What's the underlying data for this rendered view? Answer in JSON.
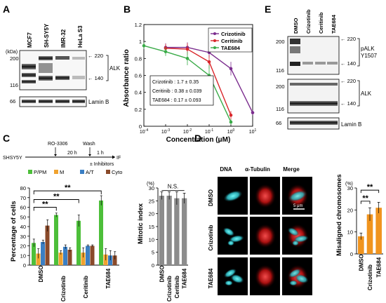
{
  "panels": {
    "A": {
      "letter": "A",
      "lanes": [
        "MCF7",
        "SH-SY5Y",
        "IMR-32",
        "HeLa S3"
      ],
      "kda_label": "(kDa)",
      "markers_left": [
        "200",
        "116",
        "66"
      ],
      "markers_right": [
        "220",
        "140"
      ],
      "blot_labels": [
        "ALK",
        "Lamin B"
      ]
    },
    "B": {
      "letter": "B",
      "legend_box": [
        "Crizotinib : 1.7  ± 0.35",
        "Ceritinib : 0.38 ± 0.039",
        "TAE684 : 0.17 ± 0.093"
      ]
    },
    "C": {
      "letter": "C",
      "schematic": {
        "cell_line": "SHSY5Y",
        "drug": "RO-3306",
        "wash": "Wash",
        "time1": "20 h",
        "time2": "1 h",
        "inhibitors": "± Inhibitors",
        "endpoint": "IF"
      },
      "significance": [
        "**",
        "**",
        "**"
      ],
      "ns_label": "N.S."
    },
    "D": {
      "letter": "D",
      "columns": [
        "DNA",
        "α-Tubulin",
        "Merge"
      ],
      "rows": [
        "DMSO",
        "Crizotinib",
        "TAE684"
      ],
      "scale_bar": "5 μm",
      "significance": [
        "**",
        "**"
      ]
    },
    "E": {
      "letter": "E",
      "lanes": [
        "DMSO",
        "Crizotinib",
        "Ceritinib",
        "TAE684"
      ],
      "markers_left": [
        "200",
        "116",
        "200",
        "116",
        "66"
      ],
      "markers_right": [
        "220",
        "140",
        "220",
        "140"
      ],
      "blot_labels": [
        "pALK",
        "Y1507",
        "ALK",
        "Lamin B"
      ]
    }
  },
  "chart_data": [
    {
      "id": "B",
      "type": "line",
      "xlabel": "Concentration (μM)",
      "ylabel": "Absorbance ratio",
      "x_scale": "log",
      "xlim": [
        0.0001,
        10
      ],
      "ylim": [
        0,
        1.2
      ],
      "x_ticks": [
        "10-4",
        "10-3",
        "10-2",
        "10-1",
        "100",
        "101"
      ],
      "y_ticks": [
        "0",
        "0.2",
        "0.4",
        "0.6",
        "0.8",
        "1",
        "1.2"
      ],
      "x": [
        0.0001,
        0.001,
        0.01,
        0.1,
        1,
        10
      ],
      "legend_position": "top-right",
      "series": [
        {
          "name": "Crizotinib",
          "color": "#7b2d8e",
          "values": [
            null,
            0.93,
            0.93,
            0.87,
            0.68,
            0.16
          ]
        },
        {
          "name": "Ceritinib",
          "color": "#d9262b",
          "values": [
            null,
            0.92,
            0.91,
            0.76,
            0.13,
            null
          ]
        },
        {
          "name": "TAE684",
          "color": "#3aab48",
          "values": [
            0.95,
            0.88,
            0.8,
            0.6,
            0.05,
            null
          ]
        }
      ],
      "errors": {
        "Crizotinib": [
          null,
          0.05,
          0.06,
          0.06,
          0.08,
          0.03
        ],
        "Ceritinib": [
          null,
          0.05,
          0.07,
          0.08,
          0.05,
          null
        ],
        "TAE684": [
          0.04,
          0.05,
          0.08,
          0.12,
          0.03,
          null
        ]
      }
    },
    {
      "id": "C1",
      "type": "bar",
      "ylabel": "Percentage of cells",
      "ylim": [
        0,
        80
      ],
      "y_ticks": [
        "0",
        "10",
        "20",
        "30",
        "40",
        "50",
        "60",
        "70",
        "80"
      ],
      "categories": [
        "DMSO",
        "Crizotinib",
        "Ceritinib",
        "TAE684"
      ],
      "legend_position": "top",
      "series": [
        {
          "name": "P/PM",
          "color": "#4dbf3a",
          "values": [
            23,
            52,
            46,
            67
          ],
          "errors": [
            4,
            2,
            6,
            5
          ]
        },
        {
          "name": "M",
          "color": "#f0a22e",
          "values": [
            12,
            13,
            13,
            11
          ],
          "errors": [
            5,
            2,
            5,
            6
          ]
        },
        {
          "name": "A/T",
          "color": "#3a7fc4",
          "values": [
            24,
            19,
            20,
            10
          ],
          "errors": [
            2,
            2,
            1,
            5
          ]
        },
        {
          "name": "Cyto",
          "color": "#8a4a2a",
          "values": [
            41,
            16,
            20,
            10
          ],
          "errors": [
            6,
            2,
            1,
            4
          ]
        }
      ]
    },
    {
      "id": "C2",
      "type": "bar",
      "ylabel": "Mitotic index",
      "unit_label": "(%)",
      "ylim": [
        0,
        30
      ],
      "y_ticks": [
        "0",
        "5",
        "10",
        "15",
        "20",
        "25",
        "30"
      ],
      "categories": [
        "DMSO",
        "Crizotinib",
        "Ceritinib",
        "TAE684"
      ],
      "series": [
        {
          "color": "#8c8c8c",
          "values": [
            27,
            27,
            26,
            26
          ],
          "errors": [
            1.5,
            1.5,
            2.5,
            2
          ]
        }
      ]
    },
    {
      "id": "D",
      "type": "bar",
      "ylabel": "Misaligned chromosomes",
      "unit_label": "(%)",
      "ylim": [
        0,
        30
      ],
      "y_ticks": [
        "0",
        "10",
        "20",
        "30"
      ],
      "categories": [
        "DMSO",
        "Crizotinib",
        "TAE684"
      ],
      "series": [
        {
          "color": "#f0941e",
          "values": [
            8,
            18,
            21
          ],
          "errors": [
            1.5,
            3,
            2.5
          ]
        }
      ]
    }
  ]
}
